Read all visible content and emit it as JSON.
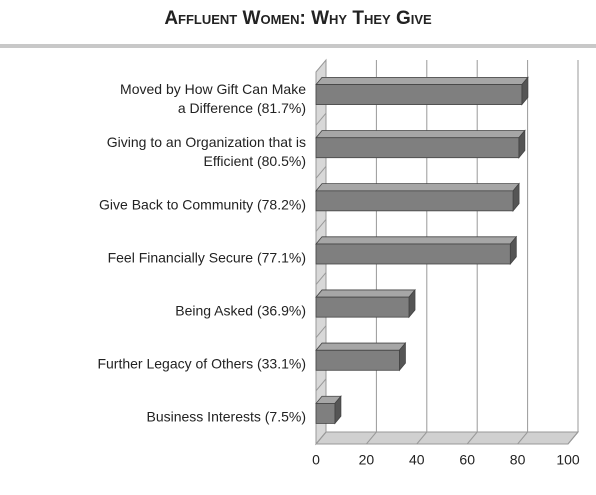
{
  "chart_data": {
    "type": "bar",
    "orientation": "horizontal",
    "title": "Affluent Women: Why They Give",
    "categories": [
      "Moved by How Gift Can Make\na Difference (81.7%)",
      "Giving to an Organization that is\nEfficient (80.5%)",
      "Give Back to Community (78.2%)",
      "Feel Financially Secure (77.1%)",
      "Being Asked (36.9%)",
      "Further Legacy of Others (33.1%)",
      "Business Interests (7.5%)"
    ],
    "values": [
      81.7,
      80.5,
      78.2,
      77.1,
      36.9,
      33.1,
      7.5
    ],
    "color": "#7f7f7f",
    "xlim": [
      0,
      100
    ],
    "xticks": [
      0,
      20,
      40,
      60,
      80,
      100
    ],
    "grid": true
  }
}
